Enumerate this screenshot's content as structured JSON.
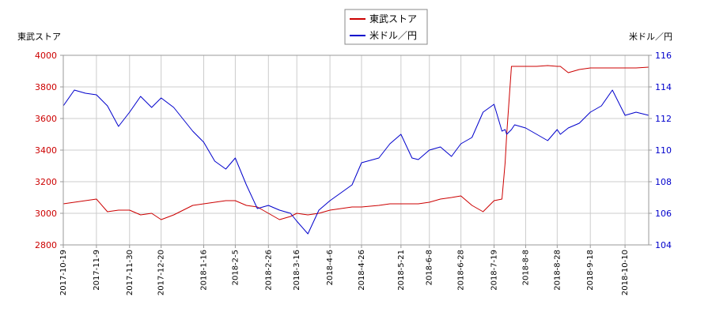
{
  "chart_data": {
    "type": "line",
    "left_axis": {
      "label": "東武ストア",
      "ylim": [
        2800,
        4000
      ],
      "ticks": [
        2800,
        3000,
        3200,
        3400,
        3600,
        3800,
        4000
      ],
      "color": "#cc0000"
    },
    "right_axis": {
      "label": "米ドル／円",
      "ylim": [
        104,
        116
      ],
      "ticks": [
        104,
        106,
        108,
        110,
        112,
        114,
        116
      ],
      "color": "#0000cc"
    },
    "x_ticks": [
      "2017-10-19",
      "2017-11-9",
      "2017-11-30",
      "2017-12-20",
      "2018-1-16",
      "2018-2-5",
      "2018-2-26",
      "2018-3-16",
      "2018-4-6",
      "2018-4-26",
      "2018-5-21",
      "2018-6-8",
      "2018-6-28",
      "2018-7-19",
      "2018-8-8",
      "2018-8-28",
      "2018-9-18",
      "2018-10-10"
    ],
    "x_range": [
      "2017-10-19",
      "2018-10-25"
    ],
    "grid": true,
    "legend": {
      "placement": "top-center",
      "entries": [
        "東武ストア",
        "米ドル／円"
      ]
    },
    "series": [
      {
        "name": "東武ストア",
        "axis": "left",
        "color": "#cc0000",
        "x": [
          "2017-10-19",
          "2017-10-26",
          "2017-11-2",
          "2017-11-9",
          "2017-11-16",
          "2017-11-23",
          "2017-11-30",
          "2017-12-7",
          "2017-12-14",
          "2017-12-20",
          "2017-12-28",
          "2018-1-9",
          "2018-1-16",
          "2018-1-23",
          "2018-1-30",
          "2018-2-5",
          "2018-2-12",
          "2018-2-19",
          "2018-2-26",
          "2018-3-5",
          "2018-3-12",
          "2018-3-16",
          "2018-3-23",
          "2018-3-30",
          "2018-4-6",
          "2018-4-13",
          "2018-4-20",
          "2018-4-26",
          "2018-5-7",
          "2018-5-14",
          "2018-5-21",
          "2018-5-28",
          "2018-6-1",
          "2018-6-8",
          "2018-6-15",
          "2018-6-22",
          "2018-6-28",
          "2018-7-5",
          "2018-7-12",
          "2018-7-19",
          "2018-7-24",
          "2018-7-26",
          "2018-7-27",
          "2018-7-30",
          "2018-8-1",
          "2018-8-8",
          "2018-8-15",
          "2018-8-22",
          "2018-8-28",
          "2018-8-30",
          "2018-9-4",
          "2018-9-11",
          "2018-9-18",
          "2018-9-25",
          "2018-10-2",
          "2018-10-10",
          "2018-10-17",
          "2018-10-25"
        ],
        "values": [
          3060,
          3070,
          3080,
          3090,
          3010,
          3020,
          3020,
          2990,
          3000,
          2960,
          2990,
          3050,
          3060,
          3070,
          3080,
          3080,
          3050,
          3040,
          3000,
          2960,
          2980,
          3000,
          2990,
          3000,
          3020,
          3030,
          3040,
          3040,
          3050,
          3060,
          3060,
          3060,
          3060,
          3070,
          3090,
          3100,
          3110,
          3050,
          3010,
          3080,
          3090,
          3320,
          3500,
          3930,
          3930,
          3930,
          3930,
          3935,
          3930,
          3930,
          3890,
          3910,
          3920,
          3920,
          3920,
          3920,
          3920,
          3925
        ]
      },
      {
        "name": "米ドル／円",
        "axis": "right",
        "color": "#0000cc",
        "x": [
          "2017-10-19",
          "2017-10-26",
          "2017-11-2",
          "2017-11-9",
          "2017-11-16",
          "2017-11-23",
          "2017-11-30",
          "2017-12-7",
          "2017-12-14",
          "2017-12-20",
          "2017-12-28",
          "2018-1-9",
          "2018-1-16",
          "2018-1-23",
          "2018-1-30",
          "2018-2-5",
          "2018-2-12",
          "2018-2-19",
          "2018-2-26",
          "2018-3-5",
          "2018-3-12",
          "2018-3-16",
          "2018-3-23",
          "2018-3-30",
          "2018-4-6",
          "2018-4-13",
          "2018-4-20",
          "2018-4-26",
          "2018-5-7",
          "2018-5-14",
          "2018-5-21",
          "2018-5-28",
          "2018-6-1",
          "2018-6-8",
          "2018-6-15",
          "2018-6-22",
          "2018-6-28",
          "2018-7-5",
          "2018-7-12",
          "2018-7-19",
          "2018-7-24",
          "2018-7-26",
          "2018-7-27",
          "2018-7-30",
          "2018-8-1",
          "2018-8-8",
          "2018-8-15",
          "2018-8-22",
          "2018-8-28",
          "2018-8-30",
          "2018-9-4",
          "2018-9-11",
          "2018-9-18",
          "2018-9-25",
          "2018-10-2",
          "2018-10-10",
          "2018-10-17",
          "2018-10-25"
        ],
        "values": [
          112.8,
          113.8,
          113.6,
          113.5,
          112.8,
          111.5,
          112.4,
          113.4,
          112.7,
          113.3,
          112.7,
          111.2,
          110.5,
          109.3,
          108.8,
          109.5,
          107.8,
          106.3,
          106.5,
          106.2,
          106.0,
          105.5,
          104.7,
          106.2,
          106.8,
          107.3,
          107.8,
          109.2,
          109.5,
          110.4,
          111.0,
          109.5,
          109.4,
          110.0,
          110.2,
          109.6,
          110.4,
          110.8,
          112.4,
          112.9,
          111.2,
          111.3,
          111.0,
          111.3,
          111.6,
          111.4,
          111.0,
          110.6,
          111.3,
          111.0,
          111.4,
          111.7,
          112.4,
          112.8,
          113.8,
          112.2,
          112.4,
          112.2
        ]
      }
    ]
  }
}
